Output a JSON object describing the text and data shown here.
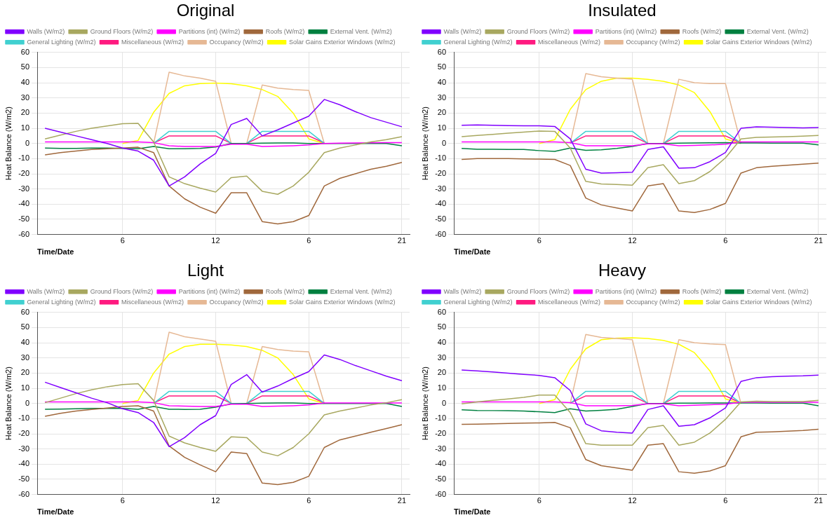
{
  "chart_data": [
    {
      "type": "line",
      "title": "Original",
      "xlabel": "Time/Date",
      "ylabel": "Heat Balance (W/m2)",
      "categories": [
        null,
        null,
        null,
        null,
        null,
        "6",
        null,
        null,
        null,
        null,
        null,
        "12",
        null,
        null,
        null,
        null,
        null,
        "6",
        null,
        null,
        null,
        null,
        null,
        "21"
      ],
      "ylim": [
        -60,
        60
      ],
      "yticks": [
        -60,
        -50,
        -40,
        -30,
        -20,
        -10,
        0,
        10,
        20,
        30,
        40,
        50,
        60
      ],
      "grid": true,
      "legend": "top",
      "marker": "none",
      "series": [
        {
          "name": "Walls (W/m2)",
          "color": "#8000ff",
          "values": [
            10,
            7.5,
            5,
            2.5,
            0,
            -3,
            -5,
            -11,
            -28,
            -22,
            -13.5,
            -6.5,
            12.5,
            16.5,
            5,
            9,
            13.5,
            18,
            29,
            25.5,
            21,
            17,
            14,
            11
          ]
        },
        {
          "name": "Ground Floors (W/m2)",
          "color": "#a8a860",
          "values": [
            3,
            5.5,
            8,
            10,
            11.5,
            13,
            13.3,
            1,
            -22,
            -26.5,
            -29.5,
            -32,
            -22.5,
            -21.5,
            -31.5,
            -33.5,
            -28,
            -19,
            -6,
            -3,
            -1,
            1,
            2.5,
            4.5
          ]
        },
        {
          "name": "Partitions (int) (W/m2)",
          "color": "#ff00ff",
          "values": [
            1,
            1,
            1,
            1,
            1,
            1,
            1,
            0.5,
            -1.5,
            -2,
            -2,
            -2,
            -0.5,
            -0.5,
            -2,
            -1.8,
            -1.5,
            -1,
            0,
            0.2,
            0.3,
            0.4,
            0.5,
            0.5
          ]
        },
        {
          "name": "Roofs (W/m2)",
          "color": "#a0683c",
          "values": [
            -7.5,
            -6,
            -5,
            -4,
            -3.5,
            -3,
            -2.5,
            -6,
            -28,
            -36.5,
            -42,
            -46,
            -32.5,
            -32.5,
            -51.5,
            -53,
            -51.5,
            -47.5,
            -28,
            -23,
            -20,
            -17,
            -15,
            -12.5
          ]
        },
        {
          "name": "External Vent. (W/m2)",
          "color": "#008040",
          "values": [
            -3,
            -3.3,
            -3.2,
            -3,
            -3,
            -3.2,
            -3.5,
            -2,
            -3.5,
            -3.5,
            -3.3,
            -2.3,
            0,
            0,
            0.2,
            0.3,
            0.3,
            0,
            0,
            0,
            0,
            0,
            0,
            -1.5
          ]
        },
        {
          "name": "General Lighting (W/m2)",
          "color": "#40d0d0",
          "values": [
            null,
            null,
            null,
            null,
            null,
            null,
            null,
            0,
            8,
            8,
            8,
            8,
            0,
            0,
            8,
            8,
            8,
            8,
            0,
            null,
            null,
            null,
            null,
            null
          ]
        },
        {
          "name": "Miscellaneous (W/m2)",
          "color": "#ff1a80",
          "values": [
            null,
            null,
            null,
            null,
            null,
            null,
            null,
            0.3,
            5,
            5,
            5,
            5,
            0,
            0,
            5,
            5,
            5,
            5,
            0.3,
            null,
            null,
            null,
            null,
            null
          ]
        },
        {
          "name": "Occupancy (W/m2)",
          "color": "#e6b894",
          "values": [
            null,
            null,
            null,
            null,
            null,
            null,
            null,
            0,
            47,
            44.5,
            43,
            41,
            0,
            0,
            38.5,
            36.5,
            35.5,
            35,
            0,
            null,
            null,
            null,
            null,
            null
          ]
        },
        {
          "name": "Solar Gains Exterior Windows (W/m2)",
          "color": "#ffff00",
          "values": [
            null,
            null,
            null,
            null,
            null,
            0,
            2,
            20.5,
            33,
            38,
            39.5,
            39.8,
            39.3,
            38,
            35.5,
            31,
            20,
            3,
            0,
            null,
            null,
            null,
            null,
            null
          ]
        }
      ]
    },
    {
      "type": "line",
      "title": "Insulated",
      "xlabel": "Time/Date",
      "ylabel": "Heat Balance (W/m2)",
      "categories": [
        null,
        null,
        null,
        null,
        null,
        "6",
        null,
        null,
        null,
        null,
        null,
        "12",
        null,
        null,
        null,
        null,
        null,
        "6",
        null,
        null,
        null,
        null,
        null,
        "21"
      ],
      "ylim": [
        -60,
        60
      ],
      "yticks": [
        -60,
        -50,
        -40,
        -30,
        -20,
        -10,
        0,
        10,
        20,
        30,
        40,
        50,
        60
      ],
      "grid": true,
      "legend": "top",
      "marker": "none",
      "series": [
        {
          "name": "Walls (W/m2)",
          "color": "#8000ff",
          "values": [
            12,
            12.2,
            12,
            11.8,
            11.6,
            11.6,
            11.2,
            3,
            -17,
            -19.5,
            -19.3,
            -19,
            -4,
            -2.2,
            -16.3,
            -16,
            -12,
            -6,
            10,
            11,
            10.7,
            10.5,
            10.3,
            10.5
          ]
        },
        {
          "name": "Ground Floors (W/m2)",
          "color": "#a8a860",
          "values": [
            4.5,
            5.3,
            6,
            6.8,
            7.5,
            8.2,
            8,
            -3,
            -25,
            -26.7,
            -27,
            -27.5,
            -16,
            -14,
            -26.5,
            -24.5,
            -18.5,
            -9.5,
            3,
            4,
            4.2,
            4.5,
            4.8,
            5.3
          ]
        },
        {
          "name": "Partitions (int) (W/m2)",
          "color": "#ff00ff",
          "values": [
            1,
            1,
            1,
            1,
            1,
            1,
            1,
            0.5,
            -1.5,
            -1.5,
            -1.5,
            -1.5,
            -0.3,
            -0.3,
            -1.5,
            -1.3,
            -1,
            -0.5,
            1,
            1,
            1,
            1,
            1,
            1
          ]
        },
        {
          "name": "Roofs (W/m2)",
          "color": "#a0683c",
          "values": [
            -10.5,
            -10,
            -10,
            -10,
            -10.2,
            -10.3,
            -10.5,
            -14.5,
            -36,
            -40.5,
            -42.5,
            -44.5,
            -28,
            -26.5,
            -44.5,
            -45.5,
            -43.5,
            -39.5,
            -19.5,
            -16,
            -15,
            -14.3,
            -13.7,
            -13
          ]
        },
        {
          "name": "External Vent. (W/m2)",
          "color": "#008040",
          "values": [
            -3.2,
            -3.8,
            -3.8,
            -3.9,
            -4,
            -4.7,
            -5.2,
            -3,
            -4.5,
            -4.2,
            -3.3,
            -2,
            0,
            0,
            0.2,
            0.3,
            0.4,
            0.5,
            0.3,
            0.3,
            0.2,
            0.2,
            0.2,
            -1
          ]
        },
        {
          "name": "General Lighting (W/m2)",
          "color": "#40d0d0",
          "values": [
            null,
            null,
            null,
            null,
            null,
            null,
            null,
            0,
            8,
            8,
            8,
            8,
            0,
            0,
            8,
            8,
            8,
            8,
            0,
            null,
            null,
            null,
            null,
            null
          ]
        },
        {
          "name": "Miscellaneous (W/m2)",
          "color": "#ff1a80",
          "values": [
            null,
            null,
            null,
            null,
            null,
            null,
            null,
            0.3,
            5,
            5,
            5,
            5,
            0,
            0,
            5,
            5,
            5,
            5,
            0.3,
            null,
            null,
            null,
            null,
            null
          ]
        },
        {
          "name": "Occupancy (W/m2)",
          "color": "#e6b894",
          "values": [
            null,
            null,
            null,
            null,
            null,
            null,
            null,
            0.5,
            46,
            44,
            43,
            42.3,
            0,
            0,
            42.3,
            40,
            39.5,
            39.5,
            0,
            null,
            null,
            null,
            null,
            null
          ]
        },
        {
          "name": "Solar Gains Exterior Windows (W/m2)",
          "color": "#ffff00",
          "values": [
            null,
            null,
            null,
            null,
            null,
            0,
            2.5,
            22.5,
            35.5,
            41,
            43,
            43,
            42.2,
            41,
            38.5,
            33.5,
            21,
            3,
            0,
            null,
            null,
            null,
            null,
            null
          ]
        }
      ]
    },
    {
      "type": "line",
      "title": "Light",
      "xlabel": "Time/Date",
      "ylabel": "Heat Balance (W/m2)",
      "categories": [
        null,
        null,
        null,
        null,
        null,
        "6",
        null,
        null,
        null,
        null,
        null,
        "12",
        null,
        null,
        null,
        null,
        null,
        "6",
        null,
        null,
        null,
        null,
        null,
        "21"
      ],
      "ylim": [
        -60,
        60
      ],
      "yticks": [
        -60,
        -50,
        -40,
        -30,
        -20,
        -10,
        0,
        10,
        20,
        30,
        40,
        50,
        60
      ],
      "grid": true,
      "legend": "top",
      "marker": "none",
      "series": [
        {
          "name": "Walls (W/m2)",
          "color": "#8000ff",
          "values": [
            14,
            10.5,
            7,
            3.5,
            0.5,
            -3.5,
            -6,
            -12.5,
            -28.5,
            -22.5,
            -14,
            -8,
            12.5,
            19,
            7.5,
            11.5,
            16.5,
            21,
            32,
            29,
            25,
            21.5,
            18,
            15
          ]
        },
        {
          "name": "Ground Floors (W/m2)",
          "color": "#a8a860",
          "values": [
            0.5,
            3.5,
            6.5,
            9,
            11,
            12.5,
            13,
            2,
            -21.5,
            -26,
            -29,
            -31.5,
            -22,
            -22.5,
            -32,
            -34.5,
            -29,
            -20,
            -7.5,
            -5,
            -3,
            -1,
            0.5,
            2.5
          ]
        },
        {
          "name": "Partitions (int) (W/m2)",
          "color": "#ff00ff",
          "values": [
            1,
            1,
            1,
            1,
            1,
            1,
            1,
            0.5,
            -1.5,
            -1.7,
            -2,
            -2,
            -0.5,
            -0.5,
            -2,
            -1.8,
            -1.5,
            -1,
            0.3,
            0.3,
            0.3,
            0.3,
            0.3,
            0.3
          ]
        },
        {
          "name": "Roofs (W/m2)",
          "color": "#a0683c",
          "values": [
            -8.5,
            -6.5,
            -5,
            -4,
            -3,
            -2,
            -1.5,
            -5,
            -28,
            -35.5,
            -40.5,
            -45,
            -32,
            -33,
            -52.5,
            -53.5,
            -52,
            -48,
            -29,
            -24,
            -21.5,
            -19,
            -16.5,
            -14
          ]
        },
        {
          "name": "External Vent. (W/m2)",
          "color": "#008040",
          "values": [
            -3.8,
            -3.7,
            -3.5,
            -3.3,
            -3.2,
            -3.3,
            -3.8,
            -2,
            -3.8,
            -3.9,
            -3.8,
            -2.5,
            -0.2,
            0,
            0.2,
            0.3,
            0.3,
            0,
            0,
            0,
            0,
            0,
            0,
            -2
          ]
        },
        {
          "name": "General Lighting (W/m2)",
          "color": "#40d0d0",
          "values": [
            null,
            null,
            null,
            null,
            null,
            null,
            null,
            0,
            8,
            8,
            8,
            8,
            0,
            0,
            8,
            8,
            8,
            8,
            0,
            null,
            null,
            null,
            null,
            null
          ]
        },
        {
          "name": "Miscellaneous (W/m2)",
          "color": "#ff1a80",
          "values": [
            null,
            null,
            null,
            null,
            null,
            null,
            null,
            0.3,
            5,
            5,
            5,
            5,
            0,
            0,
            5,
            5,
            5,
            5,
            0.3,
            null,
            null,
            null,
            null,
            null
          ]
        },
        {
          "name": "Occupancy (W/m2)",
          "color": "#e6b894",
          "values": [
            null,
            null,
            null,
            null,
            null,
            null,
            null,
            0,
            47,
            44,
            42.5,
            41,
            0,
            0,
            37.5,
            35.5,
            34.5,
            34,
            0,
            null,
            null,
            null,
            null,
            null
          ]
        },
        {
          "name": "Solar Gains Exterior Windows (W/m2)",
          "color": "#ffff00",
          "values": [
            null,
            null,
            null,
            null,
            null,
            0,
            2,
            20,
            32.5,
            37.5,
            39,
            39,
            38.5,
            37.5,
            35,
            30,
            19,
            3,
            0,
            null,
            null,
            null,
            null,
            null
          ]
        }
      ]
    },
    {
      "type": "line",
      "title": "Heavy",
      "xlabel": "Time/Date",
      "ylabel": "Heat Balance (W/m2)",
      "categories": [
        null,
        null,
        null,
        null,
        null,
        "6",
        null,
        null,
        null,
        null,
        null,
        "12",
        null,
        null,
        null,
        null,
        null,
        "6",
        null,
        null,
        null,
        null,
        null,
        "21"
      ],
      "ylim": [
        -60,
        60
      ],
      "yticks": [
        -60,
        -50,
        -40,
        -30,
        -20,
        -10,
        0,
        10,
        20,
        30,
        40,
        50,
        60
      ],
      "grid": true,
      "legend": "top",
      "marker": "none",
      "series": [
        {
          "name": "Walls (W/m2)",
          "color": "#8000ff",
          "values": [
            22,
            21.5,
            20.8,
            20,
            19.2,
            18.5,
            17,
            8.5,
            -13.5,
            -18,
            -19,
            -19.5,
            -4,
            -1.5,
            -15,
            -14,
            -9.5,
            -3,
            14.5,
            17,
            17.7,
            18,
            18.2,
            18.7
          ]
        },
        {
          "name": "Ground Floors (W/m2)",
          "color": "#a8a860",
          "values": [
            -0.3,
            1,
            2,
            3,
            4,
            5.5,
            5.5,
            -6,
            -26.5,
            -27.5,
            -27.5,
            -27.5,
            -16,
            -14.5,
            -27.5,
            -25.5,
            -19.5,
            -10.5,
            1,
            1.5,
            1.3,
            1.2,
            1.3,
            2
          ]
        },
        {
          "name": "Partitions (int) (W/m2)",
          "color": "#ff00ff",
          "values": [
            1,
            1,
            1,
            1,
            1,
            1,
            1,
            0.5,
            -1.5,
            -1.5,
            -1.5,
            -1.3,
            -0.3,
            -0.3,
            -1.5,
            -1.2,
            -0.8,
            -0.5,
            0.8,
            0.8,
            0.8,
            0.8,
            0.8,
            0.8
          ]
        },
        {
          "name": "Roofs (W/m2)",
          "color": "#a0683c",
          "values": [
            -13.8,
            -13.6,
            -13.4,
            -13.2,
            -13,
            -12.8,
            -12.5,
            -16,
            -37,
            -41,
            -42.5,
            -44,
            -27.5,
            -26.5,
            -45,
            -46,
            -44.5,
            -41,
            -22,
            -19,
            -18.7,
            -18.3,
            -17.8,
            -17
          ]
        },
        {
          "name": "External Vent. (W/m2)",
          "color": "#008040",
          "values": [
            -4.2,
            -4.6,
            -4.7,
            -4.8,
            -5,
            -5.5,
            -6,
            -3.5,
            -5,
            -4.5,
            -3.8,
            -2,
            0,
            0,
            0.2,
            0.2,
            0.3,
            0.3,
            0.3,
            0.3,
            0.2,
            0.2,
            0.2,
            -1.5
          ]
        },
        {
          "name": "General Lighting (W/m2)",
          "color": "#40d0d0",
          "values": [
            null,
            null,
            null,
            null,
            null,
            null,
            null,
            0,
            8,
            8,
            8,
            8,
            0,
            0,
            8,
            8,
            8,
            8,
            0,
            null,
            null,
            null,
            null,
            null
          ]
        },
        {
          "name": "Miscellaneous (W/m2)",
          "color": "#ff1a80",
          "values": [
            null,
            null,
            null,
            null,
            null,
            null,
            null,
            0.3,
            5,
            5,
            5,
            5,
            0,
            0,
            5,
            5,
            5,
            5,
            0.3,
            null,
            null,
            null,
            null,
            null
          ]
        },
        {
          "name": "Occupancy (W/m2)",
          "color": "#e6b894",
          "values": [
            null,
            null,
            null,
            null,
            null,
            null,
            null,
            0,
            45.5,
            43.5,
            42.8,
            42,
            0,
            0,
            42,
            40,
            39.2,
            38.8,
            0,
            null,
            null,
            null,
            null,
            null
          ]
        },
        {
          "name": "Solar Gains Exterior Windows (W/m2)",
          "color": "#ffff00",
          "values": [
            null,
            null,
            null,
            null,
            null,
            0,
            2.5,
            22.5,
            36,
            42,
            43,
            43.3,
            42.8,
            41.5,
            39,
            33.5,
            21.5,
            3,
            0,
            null,
            null,
            null,
            null,
            null
          ]
        }
      ]
    }
  ]
}
